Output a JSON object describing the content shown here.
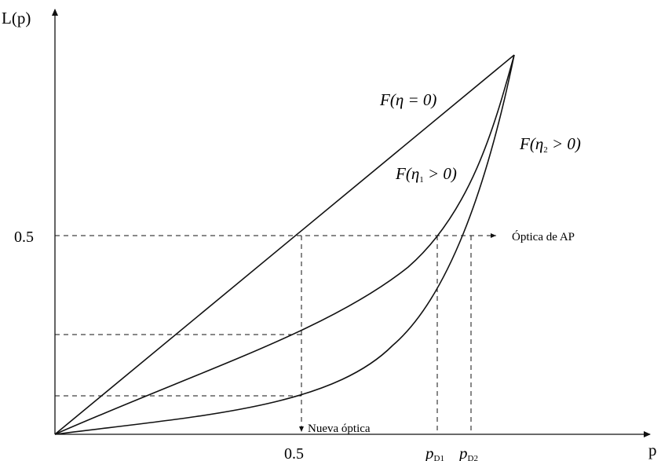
{
  "axes": {
    "y_label": "L(p)",
    "x_label": "p",
    "y_tick": "0.5",
    "x_tick": "0.5"
  },
  "curves": {
    "equality": {
      "label_base": "F(",
      "label_eta": "η",
      "label_sub": "",
      "label_rest": " = 0)"
    },
    "eta1": {
      "label_base": "F(",
      "label_eta": "η",
      "label_sub": "1",
      "label_rest": " > 0)"
    },
    "eta2": {
      "label_base": "F(",
      "label_eta": "η",
      "label_sub": "2",
      "label_rest": " > 0)"
    }
  },
  "annotations": {
    "ap_optic": "Óptica de AP",
    "new_optic": "Nueva óptica"
  },
  "p_labels": {
    "pd1_main": "p",
    "pd1_sub": "D1",
    "pd2_main": "p",
    "pd2_sub": "D2"
  }
}
